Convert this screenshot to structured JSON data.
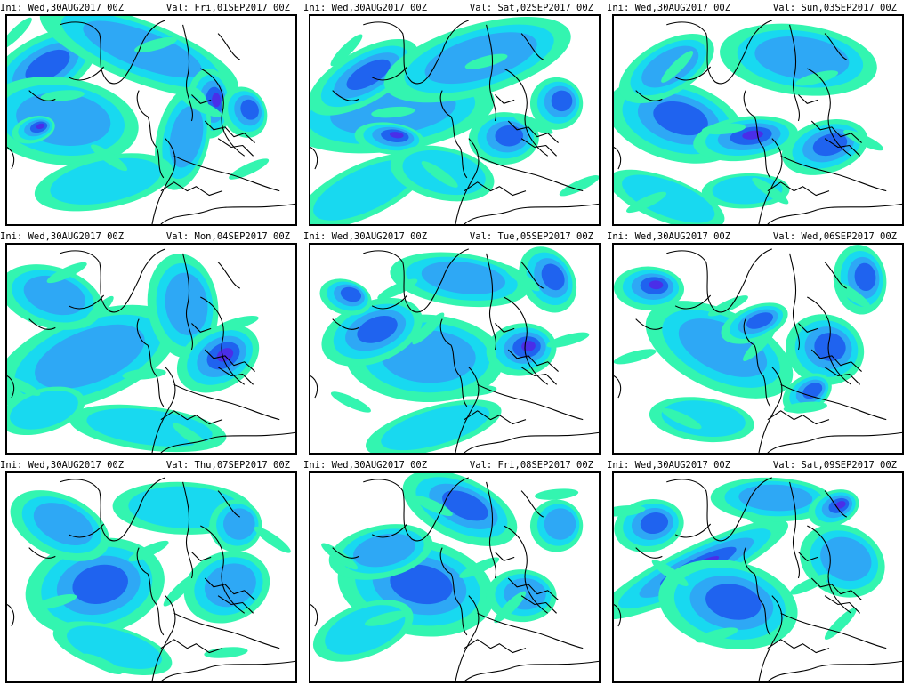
{
  "colors": {
    "light_green": "#33f5b0",
    "cyan": "#18d9f0",
    "light_blue": "#2ea8f5",
    "blue": "#1f63ef",
    "dark_blue": "#4a2ee8",
    "violet": "#8a1fe0",
    "magenta": "#e020e0",
    "coastline": "#000000"
  },
  "panels": [
    {
      "ini": "Ini: Wed,30AUG2017 00Z",
      "val": "Val: Fri,01SEP2017 00Z"
    },
    {
      "ini": "Ini: Wed,30AUG2017 00Z",
      "val": "Val: Sat,02SEP2017 00Z"
    },
    {
      "ini": "Ini: Wed,30AUG2017 00Z",
      "val": "Val: Sun,03SEP2017 00Z"
    },
    {
      "ini": "Ini: Wed,30AUG2017 00Z",
      "val": "Val: Mon,04SEP2017 00Z"
    },
    {
      "ini": "Ini: Wed,30AUG2017 00Z",
      "val": "Val: Tue,05SEP2017 00Z"
    },
    {
      "ini": "Ini: Wed,30AUG2017 00Z",
      "val": "Val: Wed,06SEP2017 00Z"
    },
    {
      "ini": "Ini: Wed,30AUG2017 00Z",
      "val": "Val: Thu,07SEP2017 00Z"
    },
    {
      "ini": "Ini: Wed,30AUG2017 00Z",
      "val": "Val: Fri,08SEP2017 00Z"
    },
    {
      "ini": "Ini: Wed,30AUG2017 00Z",
      "val": "Val: Sat,09SEP2017 00Z"
    }
  ]
}
